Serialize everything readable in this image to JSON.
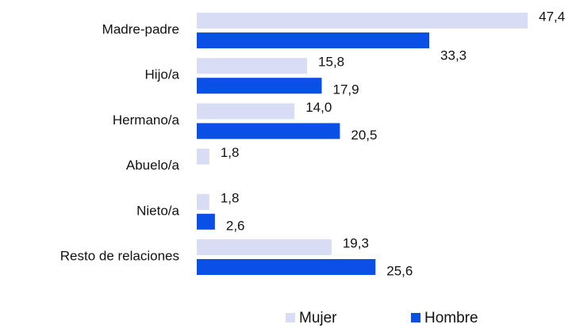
{
  "chart_data": {
    "type": "bar",
    "orientation": "horizontal",
    "categories": [
      "Madre-padre",
      "Hijo/a",
      "Hermano/a",
      "Abuelo/a",
      "Nieto/a",
      "Resto de relaciones"
    ],
    "series": [
      {
        "name": "Mujer",
        "color": "#d9dcf5",
        "values": [
          47.4,
          15.8,
          14.0,
          1.8,
          1.8,
          19.3
        ],
        "value_labels": [
          "47,4",
          "15,8",
          "14,0",
          "1,8",
          "1,8",
          "19,3"
        ]
      },
      {
        "name": "Hombre",
        "color": "#0a50e6",
        "values": [
          33.3,
          17.9,
          20.5,
          null,
          2.6,
          25.6
        ],
        "value_labels": [
          "33,3",
          "17,9",
          "20,5",
          null,
          "2,6",
          "25,6"
        ]
      }
    ],
    "legend": "bottom"
  }
}
